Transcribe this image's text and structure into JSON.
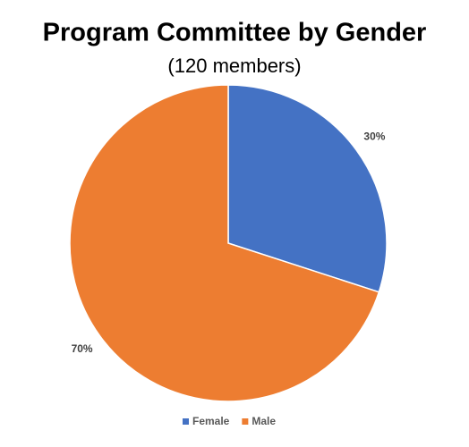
{
  "chart_data": {
    "type": "pie",
    "title": "Program Committee by Gender",
    "subtitle": "(120 members)",
    "categories": [
      "Female",
      "Male"
    ],
    "values": [
      30,
      70
    ],
    "value_labels": [
      "30%",
      "70%"
    ],
    "colors": [
      "#4472c4",
      "#ed7d31"
    ],
    "legend": "bottom"
  }
}
